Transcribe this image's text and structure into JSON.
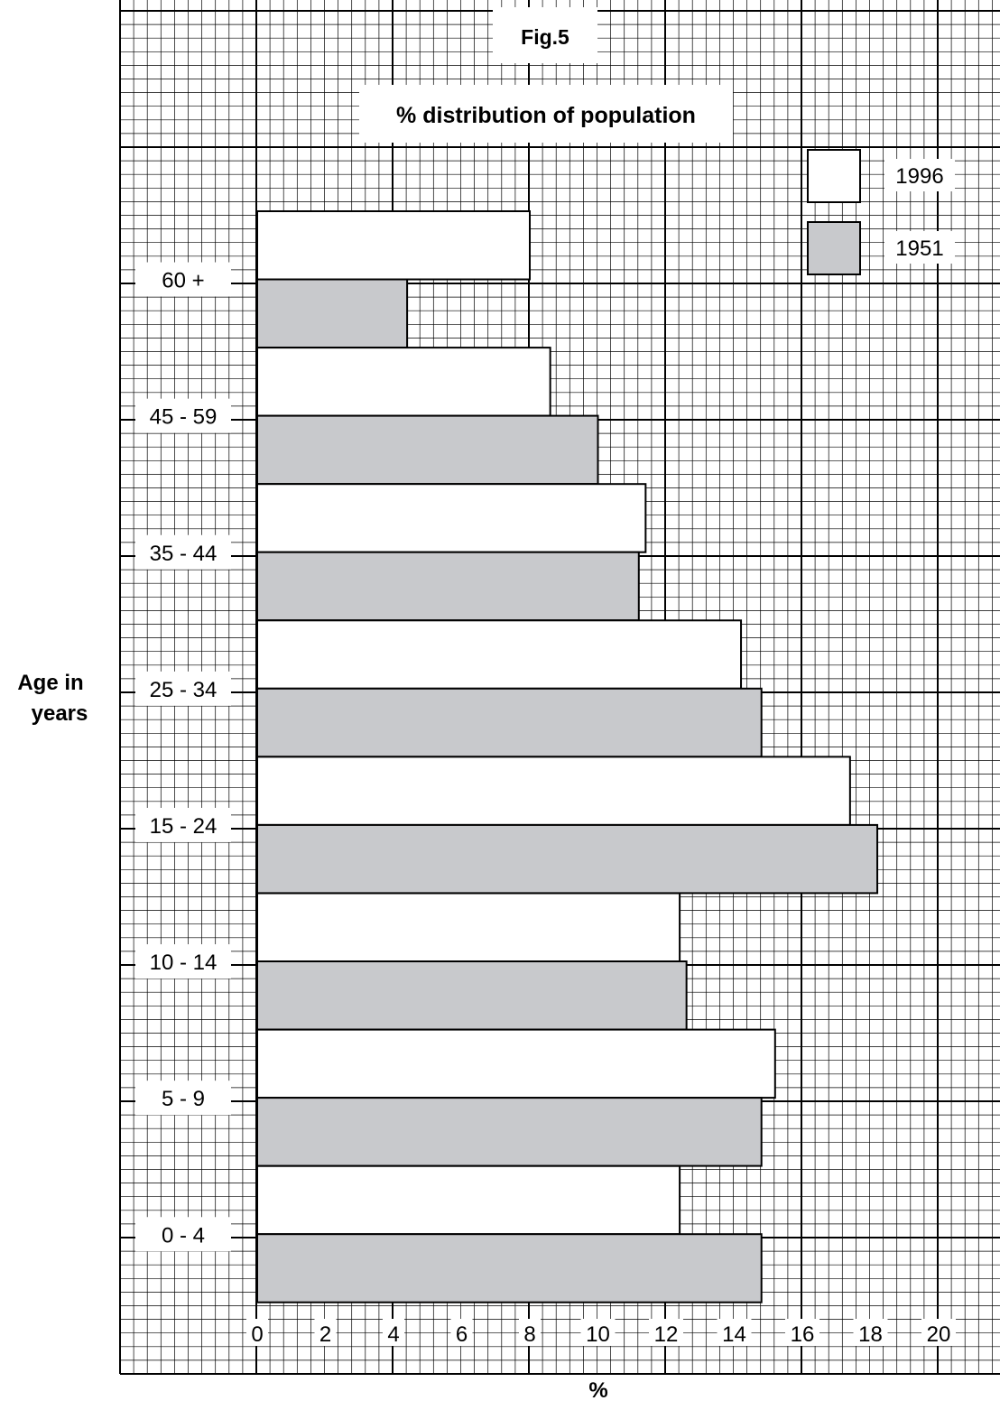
{
  "fig_label": "Fig.5",
  "chart_data": {
    "type": "bar",
    "orientation": "horizontal",
    "title": "% distribution of population",
    "xlabel": "%",
    "ylabel": [
      "Age in",
      "years"
    ],
    "xlim": [
      0,
      20
    ],
    "xticks": [
      "0",
      "2",
      "4",
      "6",
      "8",
      "10",
      "12",
      "14",
      "16",
      "18",
      "20"
    ],
    "categories": [
      "60 +",
      "45 - 59",
      "35 - 44",
      "25 - 34",
      "15 - 24",
      "10 - 14",
      "5 - 9",
      "0 - 4"
    ],
    "series": [
      {
        "name": "1996",
        "color": "#ffffff",
        "values": [
          8.0,
          8.6,
          11.4,
          14.2,
          17.4,
          12.4,
          15.2,
          12.4
        ]
      },
      {
        "name": "1951",
        "color": "#c8c9cc",
        "values": [
          4.4,
          10.0,
          11.2,
          14.8,
          18.2,
          12.6,
          14.8,
          14.8
        ]
      }
    ],
    "grid": true,
    "legend_position": "top-right"
  }
}
